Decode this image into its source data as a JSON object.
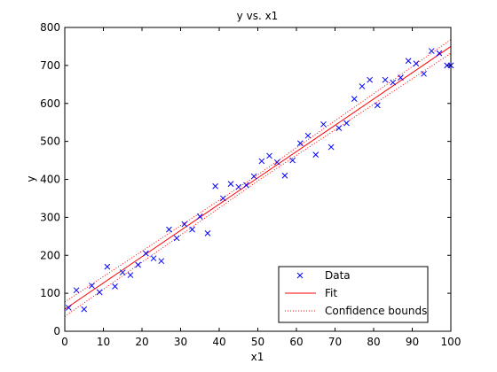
{
  "chart_data": {
    "type": "scatter",
    "title": "y vs. x1",
    "xlabel": "x1",
    "ylabel": "y",
    "xlim": [
      0,
      100
    ],
    "ylim": [
      0,
      800
    ],
    "xticks": [
      0,
      10,
      20,
      30,
      40,
      50,
      60,
      70,
      80,
      90,
      100
    ],
    "yticks": [
      0,
      100,
      200,
      300,
      400,
      500,
      600,
      700,
      800
    ],
    "grid": false,
    "legend_position": "bottom-right",
    "series": [
      {
        "name": "Data",
        "kind": "scatter",
        "marker": "x",
        "color": "#0000ff",
        "x": [
          1,
          3,
          5,
          7,
          9,
          11,
          13,
          15,
          17,
          19,
          21,
          23,
          25,
          27,
          29,
          31,
          33,
          35,
          37,
          39,
          41,
          43,
          45,
          47,
          49,
          51,
          53,
          55,
          57,
          59,
          61,
          63,
          65,
          67,
          69,
          71,
          73,
          75,
          77,
          79,
          81,
          83,
          85,
          87,
          89,
          91,
          93,
          95,
          97,
          99,
          100
        ],
        "y": [
          62,
          108,
          58,
          120,
          103,
          170,
          118,
          155,
          148,
          175,
          205,
          192,
          185,
          268,
          245,
          282,
          268,
          302,
          258,
          382,
          350,
          388,
          380,
          385,
          408,
          448,
          462,
          445,
          410,
          450,
          495,
          515,
          465,
          545,
          485,
          535,
          548,
          612,
          645,
          662,
          595,
          662,
          655,
          668,
          712,
          705,
          678,
          738,
          732,
          700,
          700
        ]
      },
      {
        "name": "Fit",
        "kind": "line",
        "style": "solid",
        "color": "#ff0000",
        "x": [
          0,
          100
        ],
        "y": [
          58,
          750
        ]
      },
      {
        "name": "Confidence bounds",
        "kind": "line",
        "style": "dotted",
        "color": "#ff0000",
        "x": [
          0,
          50,
          100
        ],
        "y_upper": [
          77,
          412,
          768
        ],
        "y_lower": [
          39,
          396,
          732
        ]
      }
    ]
  }
}
